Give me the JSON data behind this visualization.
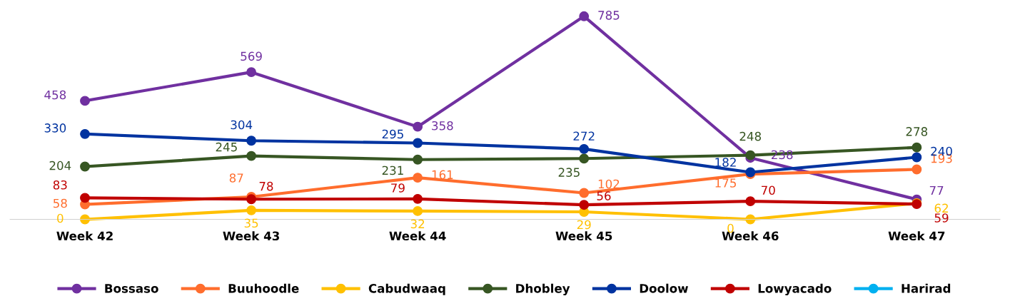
{
  "chart_data": {
    "type": "line",
    "categories": [
      "Week 42",
      "Week 43",
      "Week 44",
      "Week 45",
      "Week 46",
      "Week 47"
    ],
    "series": [
      {
        "name": "Bossaso",
        "color": "#7030a0",
        "values": [
          458,
          569,
          358,
          785,
          238,
          77
        ]
      },
      {
        "name": "Buuhoodle",
        "color": "#ff6d2d",
        "values": [
          58,
          87,
          161,
          102,
          175,
          193
        ]
      },
      {
        "name": "Cabudwaaq",
        "color": "#ffc000",
        "values": [
          0,
          35,
          32,
          29,
          0,
          62
        ]
      },
      {
        "name": "Dhobley",
        "color": "#375623",
        "values": [
          204,
          245,
          231,
          235,
          248,
          278
        ]
      },
      {
        "name": "Doolow",
        "color": "#0033a0",
        "values": [
          330,
          304,
          295,
          272,
          182,
          240
        ]
      },
      {
        "name": "Lowyacado",
        "color": "#c00000",
        "values": [
          83,
          78,
          79,
          56,
          70,
          59
        ]
      },
      {
        "name": "Harirad",
        "color": "#00b0f0",
        "values": [
          null,
          null,
          null,
          null,
          null,
          null
        ]
      }
    ],
    "tick_labels": "x",
    "data_labels": true,
    "legend": "bottom",
    "marker": "circle",
    "line_style": "solid",
    "grid": false
  }
}
